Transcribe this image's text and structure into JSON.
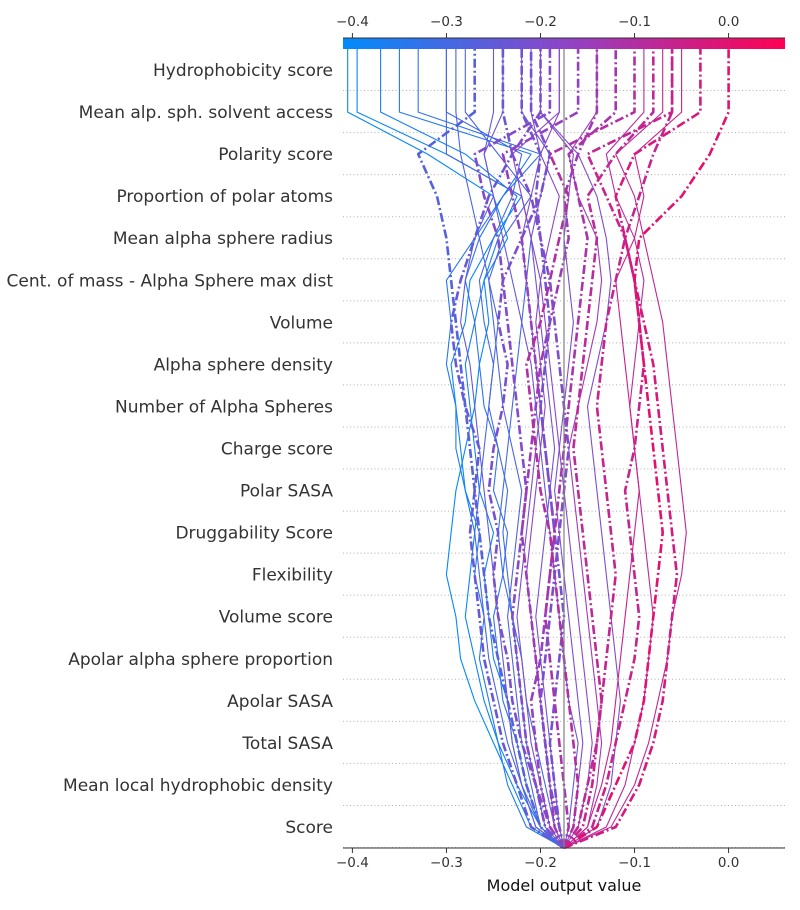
{
  "chart_data": {
    "type": "line",
    "subtype": "shap-decision-plot",
    "features": [
      "Hydrophobicity score",
      "Mean alp. sph. solvent access",
      "Polarity score",
      "Proportion of polar atoms",
      "Mean alpha sphere radius",
      "Cent. of mass - Alpha Sphere max dist",
      "Volume",
      "Alpha sphere density",
      "Number of Alpha Spheres",
      "Charge score",
      "Polar SASA",
      "Druggability Score",
      "Flexibility",
      "Volume score",
      "Apolar alpha sphere proportion",
      "Apolar SASA",
      "Total SASA",
      "Mean local hydrophobic density",
      "Score"
    ],
    "xlabel": "Model output value",
    "xlim": [
      -0.41,
      0.06
    ],
    "xticks": [
      -0.4,
      -0.3,
      -0.2,
      -0.1,
      0.0
    ],
    "xtick_labels": [
      "−0.4",
      "−0.3",
      "−0.2",
      "−0.1",
      "0.0"
    ],
    "base_value": -0.175,
    "colormap": {
      "low": "#008bfb",
      "mid": "#8e44c8",
      "high": "#ff0052",
      "range": [
        -0.41,
        0.06
      ]
    },
    "line_styles_legend": "solid = correctly classified, dash-dot = misclassified",
    "series_note": "Each path lists model output values from the base value upward through features from bottom (Score) to top (Hydrophobicity score).",
    "series": [
      {
        "style": "solid",
        "values": [
          -0.175,
          -0.215,
          -0.235,
          -0.245,
          -0.255,
          -0.265,
          -0.26,
          -0.27,
          -0.265,
          -0.28,
          -0.29,
          -0.29,
          -0.3,
          -0.295,
          -0.3,
          -0.27,
          -0.24,
          -0.21,
          -0.35
        ]
      },
      {
        "style": "solid",
        "values": [
          -0.175,
          -0.2,
          -0.225,
          -0.245,
          -0.26,
          -0.27,
          -0.28,
          -0.275,
          -0.27,
          -0.28,
          -0.285,
          -0.29,
          -0.295,
          -0.28,
          -0.275,
          -0.25,
          -0.22,
          -0.3,
          -0.395
        ]
      },
      {
        "style": "solid",
        "values": [
          -0.175,
          -0.21,
          -0.23,
          -0.25,
          -0.27,
          -0.285,
          -0.29,
          -0.3,
          -0.295,
          -0.29,
          -0.28,
          -0.27,
          -0.265,
          -0.255,
          -0.26,
          -0.235,
          -0.25,
          -0.32,
          -0.405
        ]
      },
      {
        "style": "solid",
        "values": [
          -0.175,
          -0.205,
          -0.22,
          -0.23,
          -0.235,
          -0.25,
          -0.255,
          -0.26,
          -0.25,
          -0.265,
          -0.27,
          -0.275,
          -0.28,
          -0.27,
          -0.26,
          -0.245,
          -0.225,
          -0.28,
          -0.37
        ]
      },
      {
        "style": "solid",
        "values": [
          -0.175,
          -0.2,
          -0.215,
          -0.225,
          -0.24,
          -0.245,
          -0.25,
          -0.24,
          -0.235,
          -0.25,
          -0.245,
          -0.26,
          -0.265,
          -0.27,
          -0.28,
          -0.265,
          -0.24,
          -0.2,
          -0.33
        ]
      },
      {
        "style": "solid",
        "values": [
          -0.175,
          -0.195,
          -0.205,
          -0.215,
          -0.22,
          -0.225,
          -0.23,
          -0.235,
          -0.24,
          -0.235,
          -0.245,
          -0.255,
          -0.25,
          -0.26,
          -0.265,
          -0.25,
          -0.23,
          -0.22,
          -0.3
        ]
      },
      {
        "style": "solid",
        "values": [
          -0.175,
          -0.2,
          -0.21,
          -0.22,
          -0.225,
          -0.23,
          -0.235,
          -0.23,
          -0.225,
          -0.22,
          -0.23,
          -0.24,
          -0.245,
          -0.25,
          -0.255,
          -0.24,
          -0.21,
          -0.245,
          -0.28
        ]
      },
      {
        "style": "dashdot",
        "values": [
          -0.175,
          -0.21,
          -0.225,
          -0.24,
          -0.25,
          -0.26,
          -0.265,
          -0.27,
          -0.275,
          -0.27,
          -0.265,
          -0.28,
          -0.29,
          -0.295,
          -0.285,
          -0.27,
          -0.255,
          -0.23,
          -0.24
        ]
      },
      {
        "style": "solid",
        "values": [
          -0.175,
          -0.205,
          -0.22,
          -0.23,
          -0.235,
          -0.24,
          -0.245,
          -0.25,
          -0.255,
          -0.26,
          -0.265,
          -0.27,
          -0.275,
          -0.285,
          -0.28,
          -0.27,
          -0.25,
          -0.26,
          -0.25
        ]
      },
      {
        "style": "dashdot",
        "values": [
          -0.175,
          -0.19,
          -0.205,
          -0.22,
          -0.23,
          -0.235,
          -0.245,
          -0.25,
          -0.245,
          -0.255,
          -0.25,
          -0.24,
          -0.235,
          -0.245,
          -0.24,
          -0.22,
          -0.2,
          -0.19,
          -0.21
        ]
      },
      {
        "style": "solid",
        "values": [
          -0.175,
          -0.185,
          -0.195,
          -0.205,
          -0.215,
          -0.22,
          -0.23,
          -0.24,
          -0.245,
          -0.24,
          -0.235,
          -0.23,
          -0.225,
          -0.22,
          -0.215,
          -0.21,
          -0.22,
          -0.3,
          -0.3
        ]
      },
      {
        "style": "dashdot",
        "values": [
          -0.175,
          -0.2,
          -0.215,
          -0.225,
          -0.235,
          -0.245,
          -0.255,
          -0.26,
          -0.265,
          -0.27,
          -0.275,
          -0.28,
          -0.285,
          -0.29,
          -0.295,
          -0.3,
          -0.31,
          -0.33,
          -0.27
        ]
      },
      {
        "style": "solid",
        "values": [
          -0.175,
          -0.19,
          -0.2,
          -0.21,
          -0.215,
          -0.22,
          -0.225,
          -0.22,
          -0.215,
          -0.21,
          -0.205,
          -0.2,
          -0.205,
          -0.21,
          -0.215,
          -0.22,
          -0.21,
          -0.2,
          -0.21
        ]
      },
      {
        "style": "dashdot",
        "values": [
          -0.175,
          -0.195,
          -0.205,
          -0.215,
          -0.22,
          -0.225,
          -0.23,
          -0.225,
          -0.22,
          -0.215,
          -0.22,
          -0.225,
          -0.23,
          -0.235,
          -0.24,
          -0.245,
          -0.26,
          -0.27,
          -0.19
        ]
      },
      {
        "style": "solid",
        "values": [
          -0.175,
          -0.185,
          -0.19,
          -0.195,
          -0.2,
          -0.205,
          -0.21,
          -0.215,
          -0.21,
          -0.205,
          -0.2,
          -0.195,
          -0.2,
          -0.205,
          -0.2,
          -0.19,
          -0.18,
          -0.2,
          -0.18
        ]
      },
      {
        "style": "dashdot",
        "values": [
          -0.175,
          -0.19,
          -0.2,
          -0.205,
          -0.21,
          -0.2,
          -0.195,
          -0.19,
          -0.185,
          -0.19,
          -0.195,
          -0.2,
          -0.205,
          -0.21,
          -0.215,
          -0.22,
          -0.23,
          -0.24,
          -0.16
        ]
      },
      {
        "style": "solid",
        "values": [
          -0.175,
          -0.18,
          -0.185,
          -0.19,
          -0.195,
          -0.2,
          -0.205,
          -0.2,
          -0.195,
          -0.19,
          -0.185,
          -0.19,
          -0.195,
          -0.2,
          -0.205,
          -0.21,
          -0.2,
          -0.19,
          -0.22
        ]
      },
      {
        "style": "dashdot",
        "values": [
          -0.175,
          -0.185,
          -0.19,
          -0.195,
          -0.2,
          -0.205,
          -0.21,
          -0.215,
          -0.22,
          -0.215,
          -0.21,
          -0.205,
          -0.2,
          -0.19,
          -0.18,
          -0.17,
          -0.175,
          -0.16,
          -0.14
        ]
      },
      {
        "style": "solid",
        "values": [
          -0.175,
          -0.17,
          -0.165,
          -0.16,
          -0.17,
          -0.175,
          -0.18,
          -0.185,
          -0.19,
          -0.195,
          -0.2,
          -0.205,
          -0.21,
          -0.22,
          -0.23,
          -0.24,
          -0.25,
          -0.26,
          -0.24
        ]
      },
      {
        "style": "dashdot",
        "values": [
          -0.175,
          -0.18,
          -0.185,
          -0.19,
          -0.185,
          -0.18,
          -0.175,
          -0.18,
          -0.185,
          -0.19,
          -0.195,
          -0.2,
          -0.195,
          -0.19,
          -0.195,
          -0.2,
          -0.205,
          -0.2,
          -0.22
        ]
      },
      {
        "style": "solid",
        "values": [
          -0.175,
          -0.165,
          -0.16,
          -0.155,
          -0.16,
          -0.165,
          -0.17,
          -0.175,
          -0.18,
          -0.185,
          -0.18,
          -0.175,
          -0.17,
          -0.165,
          -0.17,
          -0.175,
          -0.17,
          -0.165,
          -0.2
        ]
      },
      {
        "style": "dashdot",
        "values": [
          -0.175,
          -0.17,
          -0.175,
          -0.18,
          -0.185,
          -0.19,
          -0.195,
          -0.19,
          -0.185,
          -0.18,
          -0.175,
          -0.17,
          -0.165,
          -0.16,
          -0.155,
          -0.15,
          -0.16,
          -0.17,
          -0.12
        ]
      },
      {
        "style": "solid",
        "values": [
          -0.175,
          -0.16,
          -0.15,
          -0.145,
          -0.15,
          -0.155,
          -0.16,
          -0.165,
          -0.17,
          -0.175,
          -0.18,
          -0.185,
          -0.19,
          -0.195,
          -0.2,
          -0.21,
          -0.22,
          -0.23,
          -0.18
        ]
      },
      {
        "style": "dashdot",
        "values": [
          -0.175,
          -0.165,
          -0.16,
          -0.165,
          -0.17,
          -0.175,
          -0.18,
          -0.185,
          -0.19,
          -0.2,
          -0.205,
          -0.21,
          -0.215,
          -0.2,
          -0.19,
          -0.18,
          -0.17,
          -0.19,
          -0.1
        ]
      },
      {
        "style": "solid",
        "values": [
          -0.175,
          -0.15,
          -0.14,
          -0.135,
          -0.14,
          -0.145,
          -0.15,
          -0.155,
          -0.16,
          -0.165,
          -0.17,
          -0.16,
          -0.15,
          -0.14,
          -0.135,
          -0.14,
          -0.16,
          -0.17,
          -0.14
        ]
      },
      {
        "style": "dashdot",
        "values": [
          -0.175,
          -0.16,
          -0.15,
          -0.14,
          -0.135,
          -0.14,
          -0.145,
          -0.15,
          -0.155,
          -0.16,
          -0.165,
          -0.16,
          -0.155,
          -0.15,
          -0.145,
          -0.14,
          -0.15,
          -0.12,
          -0.08
        ]
      },
      {
        "style": "solid",
        "values": [
          -0.175,
          -0.14,
          -0.125,
          -0.12,
          -0.115,
          -0.12,
          -0.125,
          -0.13,
          -0.135,
          -0.14,
          -0.145,
          -0.15,
          -0.14,
          -0.13,
          -0.125,
          -0.13,
          -0.14,
          -0.16,
          -0.2
        ]
      },
      {
        "style": "dashdot",
        "values": [
          -0.175,
          -0.145,
          -0.13,
          -0.12,
          -0.11,
          -0.1,
          -0.095,
          -0.1,
          -0.105,
          -0.11,
          -0.1,
          -0.095,
          -0.09,
          -0.095,
          -0.1,
          -0.11,
          -0.13,
          -0.15,
          -0.06
        ]
      },
      {
        "style": "solid",
        "values": [
          -0.175,
          -0.13,
          -0.11,
          -0.1,
          -0.09,
          -0.085,
          -0.08,
          -0.085,
          -0.09,
          -0.095,
          -0.1,
          -0.105,
          -0.1,
          -0.095,
          -0.09,
          -0.1,
          -0.12,
          -0.13,
          -0.09
        ]
      },
      {
        "style": "dashdot",
        "values": [
          -0.175,
          -0.12,
          -0.095,
          -0.08,
          -0.07,
          -0.065,
          -0.06,
          -0.055,
          -0.06,
          -0.065,
          -0.07,
          -0.075,
          -0.08,
          -0.09,
          -0.1,
          -0.11,
          -0.12,
          -0.1,
          -0.03
        ]
      },
      {
        "style": "solid",
        "values": [
          -0.175,
          -0.125,
          -0.1,
          -0.085,
          -0.075,
          -0.065,
          -0.06,
          -0.05,
          -0.045,
          -0.05,
          -0.055,
          -0.06,
          -0.065,
          -0.07,
          -0.08,
          -0.09,
          -0.1,
          -0.12,
          -0.07
        ]
      },
      {
        "style": "dashdot",
        "values": [
          -0.175,
          -0.14,
          -0.12,
          -0.1,
          -0.09,
          -0.085,
          -0.08,
          -0.075,
          -0.07,
          -0.075,
          -0.08,
          -0.085,
          -0.09,
          -0.095,
          -0.1,
          -0.095,
          -0.05,
          -0.02,
          0.0
        ]
      },
      {
        "style": "solid",
        "values": [
          -0.175,
          -0.15,
          -0.135,
          -0.125,
          -0.12,
          -0.115,
          -0.11,
          -0.105,
          -0.1,
          -0.095,
          -0.1,
          -0.105,
          -0.11,
          -0.115,
          -0.12,
          -0.1,
          -0.09,
          -0.1,
          -0.05
        ]
      },
      {
        "style": "dashdot",
        "values": [
          -0.175,
          -0.155,
          -0.145,
          -0.14,
          -0.135,
          -0.13,
          -0.125,
          -0.12,
          -0.125,
          -0.13,
          -0.135,
          -0.14,
          -0.135,
          -0.13,
          -0.12,
          -0.11,
          -0.095,
          -0.08,
          -0.06
        ]
      },
      {
        "style": "solid",
        "values": [
          -0.175,
          -0.2,
          -0.22,
          -0.235,
          -0.245,
          -0.255,
          -0.26,
          -0.265,
          -0.27,
          -0.265,
          -0.26,
          -0.255,
          -0.25,
          -0.245,
          -0.255,
          -0.265,
          -0.275,
          -0.285,
          -0.29
        ]
      },
      {
        "style": "dashdot",
        "values": [
          -0.175,
          -0.18,
          -0.19,
          -0.195,
          -0.2,
          -0.195,
          -0.19,
          -0.185,
          -0.18,
          -0.175,
          -0.17,
          -0.175,
          -0.18,
          -0.185,
          -0.19,
          -0.2,
          -0.21,
          -0.23,
          -0.2
        ]
      }
    ]
  }
}
